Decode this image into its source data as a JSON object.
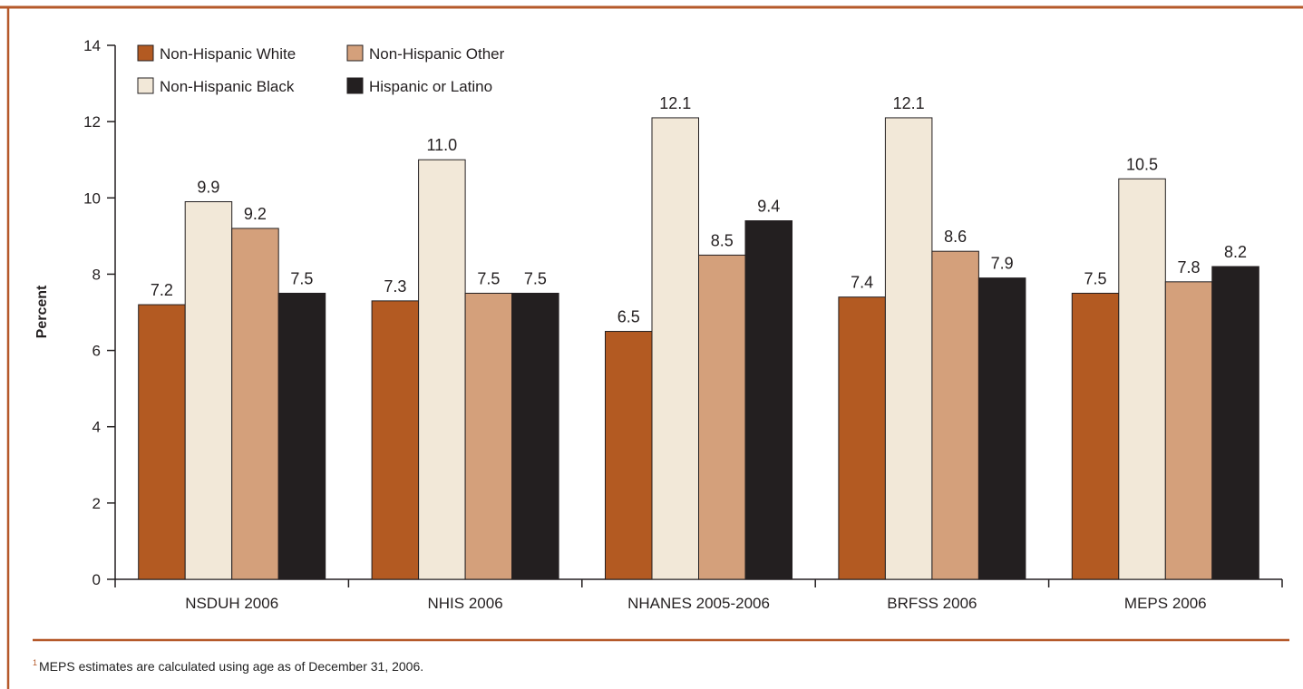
{
  "colors": {
    "frame": "#b5592a",
    "axis": "#231f20"
  },
  "chart_data": {
    "type": "bar",
    "title": "",
    "xlabel": "",
    "ylabel": "Percent",
    "ylim": [
      0,
      14
    ],
    "yticks": [
      "0",
      "2",
      "4",
      "6",
      "8",
      "10",
      "12",
      "14"
    ],
    "categories": [
      "NSDUH 2006",
      "NHIS 2006",
      "NHANES 2005-2006",
      "BRFSS 2006",
      "MEPS 2006"
    ],
    "series": [
      {
        "name": "Non-Hispanic White",
        "color": "#b35a22",
        "values": [
          7.2,
          7.3,
          6.5,
          7.4,
          7.5
        ],
        "labels": [
          "7.2",
          "7.3",
          "6.5",
          "7.4",
          "7.5"
        ]
      },
      {
        "name": "Non-Hispanic Black",
        "color": "#f2e8d8",
        "values": [
          9.9,
          11.0,
          12.1,
          12.1,
          10.5
        ],
        "labels": [
          "9.9",
          "11.0",
          "12.1",
          "12.1",
          "10.5"
        ]
      },
      {
        "name": "Non-Hispanic Other",
        "color": "#d4a07b",
        "values": [
          9.2,
          7.5,
          8.5,
          8.6,
          7.8
        ],
        "labels": [
          "9.2",
          "7.5",
          "8.5",
          "8.6",
          "7.8"
        ]
      },
      {
        "name": "Hispanic or Latino",
        "color": "#231f20",
        "values": [
          7.5,
          7.5,
          9.4,
          7.9,
          8.2
        ],
        "labels": [
          "7.5",
          "7.5",
          "9.4",
          "7.9",
          "8.2"
        ]
      }
    ],
    "legend": {
      "placement": "top-left",
      "order": [
        "Non-Hispanic White",
        "Non-Hispanic Other",
        "Non-Hispanic Black",
        "Hispanic or Latino"
      ]
    },
    "grid": false
  },
  "footnote": {
    "marker": "1",
    "text": "MEPS estimates are calculated using age as of December 31, 2006."
  }
}
